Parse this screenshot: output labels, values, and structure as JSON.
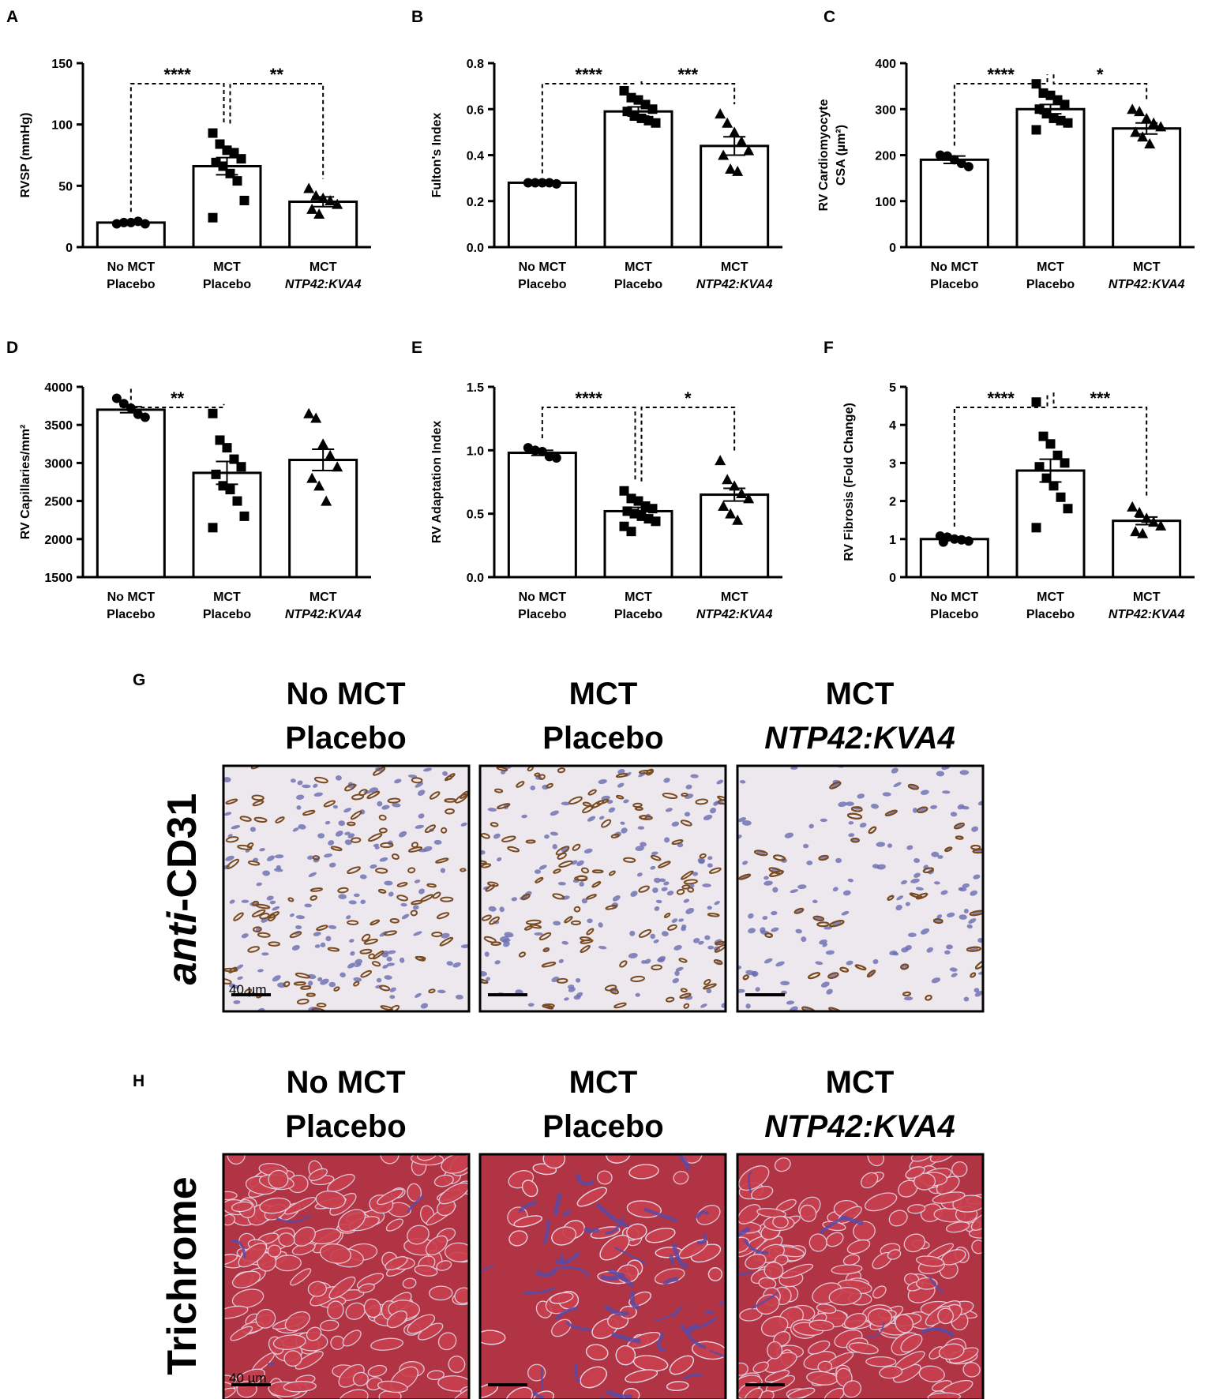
{
  "groups": [
    {
      "line1": "No MCT",
      "line2": "Placebo",
      "italic": false
    },
    {
      "line1": "MCT",
      "line2": "Placebo",
      "italic": false
    },
    {
      "line1": "MCT",
      "line2": "NTP42:KVA4",
      "italic": true
    }
  ],
  "chart_data": [
    {
      "panel": "A",
      "type": "bar",
      "ylabel": "RVSP (mmHg)",
      "ylim": [
        0,
        150
      ],
      "yticks": [
        "0",
        "50",
        "100",
        "150"
      ],
      "categories": [
        "No MCT Placebo",
        "MCT Placebo",
        "MCT NTP42:KVA4"
      ],
      "values": [
        20,
        66,
        37
      ],
      "sem": [
        1,
        7,
        4
      ],
      "points": [
        [
          19,
          20,
          20,
          21,
          19
        ],
        [
          93,
          84,
          79,
          77,
          72,
          69,
          66,
          60,
          54,
          38,
          24
        ],
        [
          48,
          42,
          40,
          38,
          35,
          31,
          27
        ]
      ],
      "markers": [
        "circle",
        "square",
        "triangle"
      ],
      "significance": [
        {
          "from": 0,
          "to": 1,
          "label": "****"
        },
        {
          "from": 1,
          "to": 2,
          "label": "**"
        }
      ]
    },
    {
      "panel": "B",
      "type": "bar",
      "ylabel": "Fulton's Index",
      "ylim": [
        0,
        0.8
      ],
      "yticks": [
        "0.0",
        "0.2",
        "0.4",
        "0.6",
        "0.8"
      ],
      "categories": [
        "No MCT Placebo",
        "MCT Placebo",
        "MCT NTP42:KVA4"
      ],
      "values": [
        0.28,
        0.59,
        0.44
      ],
      "sem": [
        0.003,
        0.02,
        0.04
      ],
      "points": [
        [
          0.28,
          0.28,
          0.28,
          0.28,
          0.275
        ],
        [
          0.68,
          0.65,
          0.64,
          0.62,
          0.6,
          0.59,
          0.57,
          0.56,
          0.55,
          0.54
        ],
        [
          0.58,
          0.54,
          0.5,
          0.46,
          0.42,
          0.4,
          0.34,
          0.33
        ]
      ],
      "markers": [
        "circle",
        "square",
        "triangle"
      ],
      "significance": [
        {
          "from": 0,
          "to": 1,
          "label": "****"
        },
        {
          "from": 1,
          "to": 2,
          "label": "***"
        }
      ]
    },
    {
      "panel": "C",
      "type": "bar",
      "ylabel": "RV Cardiomyocyte CSA (µm²)",
      "ylim": [
        0,
        400
      ],
      "yticks": [
        "0",
        "100",
        "200",
        "300",
        "400"
      ],
      "categories": [
        "No MCT Placebo",
        "MCT Placebo",
        "MCT NTP42:KVA4"
      ],
      "values": [
        190,
        300,
        258
      ],
      "sem": [
        8,
        10,
        12
      ],
      "points": [
        [
          200,
          198,
          190,
          182,
          175
        ],
        [
          355,
          335,
          330,
          320,
          310,
          300,
          290,
          280,
          275,
          270,
          255
        ],
        [
          300,
          295,
          280,
          270,
          262,
          250,
          240,
          225
        ]
      ],
      "markers": [
        "circle",
        "square",
        "triangle"
      ],
      "significance": [
        {
          "from": 0,
          "to": 1,
          "label": "****"
        },
        {
          "from": 1,
          "to": 2,
          "label": "*"
        }
      ]
    },
    {
      "panel": "D",
      "type": "bar",
      "ylabel": "RV Capillaries/mm²",
      "ylim": [
        1500,
        4000
      ],
      "yticks": [
        "1500",
        "2000",
        "2500",
        "3000",
        "3500",
        "4000"
      ],
      "categories": [
        "No MCT Placebo",
        "MCT Placebo",
        "MCT NTP42:KVA4"
      ],
      "values": [
        3700,
        2870,
        3040
      ],
      "sem": [
        40,
        150,
        140
      ],
      "points": [
        [
          3850,
          3780,
          3720,
          3640,
          3600
        ],
        [
          3650,
          3300,
          3200,
          3050,
          2950,
          2850,
          2700,
          2650,
          2500,
          2300,
          2150
        ],
        [
          3650,
          3590,
          3250,
          3100,
          2950,
          2800,
          2700,
          2500
        ]
      ],
      "markers": [
        "circle",
        "square",
        "triangle"
      ],
      "significance": [
        {
          "from": 0,
          "to": 1,
          "label": "**"
        }
      ]
    },
    {
      "panel": "E",
      "type": "bar",
      "ylabel": "RV Adaptation Index",
      "ylim": [
        0,
        1.5
      ],
      "yticks": [
        "0.0",
        "0.5",
        "1.0",
        "1.5"
      ],
      "categories": [
        "No MCT Placebo",
        "MCT Placebo",
        "MCT NTP42:KVA4"
      ],
      "values": [
        0.98,
        0.52,
        0.65
      ],
      "sem": [
        0.02,
        0.03,
        0.05
      ],
      "points": [
        [
          1.02,
          1.0,
          0.99,
          0.95,
          0.94
        ],
        [
          0.68,
          0.62,
          0.6,
          0.56,
          0.54,
          0.52,
          0.5,
          0.48,
          0.46,
          0.44,
          0.4,
          0.36
        ],
        [
          0.92,
          0.77,
          0.72,
          0.66,
          0.62,
          0.56,
          0.5,
          0.45
        ]
      ],
      "markers": [
        "circle",
        "square",
        "triangle"
      ],
      "significance": [
        {
          "from": 0,
          "to": 1,
          "label": "****"
        },
        {
          "from": 1,
          "to": 2,
          "label": "*"
        }
      ]
    },
    {
      "panel": "F",
      "type": "bar",
      "ylabel": "RV Fibrosis (Fold Change)",
      "ylim": [
        0,
        5
      ],
      "yticks": [
        "0",
        "1",
        "2",
        "3",
        "4",
        "5"
      ],
      "categories": [
        "No MCT Placebo",
        "MCT Placebo",
        "MCT NTP42:KVA4"
      ],
      "values": [
        1.0,
        2.8,
        1.48
      ],
      "sem": [
        0.03,
        0.3,
        0.1
      ],
      "points": [
        [
          1.08,
          1.05,
          1.0,
          0.98,
          0.95,
          0.92
        ],
        [
          4.6,
          3.7,
          3.5,
          3.2,
          3.0,
          2.9,
          2.6,
          2.4,
          2.1,
          1.8,
          1.3
        ],
        [
          1.85,
          1.7,
          1.55,
          1.45,
          1.35,
          1.2,
          1.15
        ]
      ],
      "markers": [
        "circle",
        "square",
        "triangle"
      ],
      "significance": [
        {
          "from": 0,
          "to": 1,
          "label": "****"
        },
        {
          "from": 1,
          "to": 2,
          "label": "***"
        }
      ]
    }
  ],
  "micrographs": [
    {
      "panel": "G",
      "stain_prefix": "anti",
      "stain_suffix": "-CD31",
      "scale_label": "40 µm",
      "colors": {
        "background": "#ece8ee",
        "nuclei": "#6a6cb0",
        "capillaries": "#7a4a20"
      }
    },
    {
      "panel": "H",
      "stain_prefix": "",
      "stain_suffix": "Trichrome",
      "scale_label": "40 µm",
      "colors": {
        "background": "#b03444",
        "tissue": "#c8404e",
        "gaps": "#e6d4e4",
        "collagen": "#5a4aa4"
      }
    }
  ]
}
